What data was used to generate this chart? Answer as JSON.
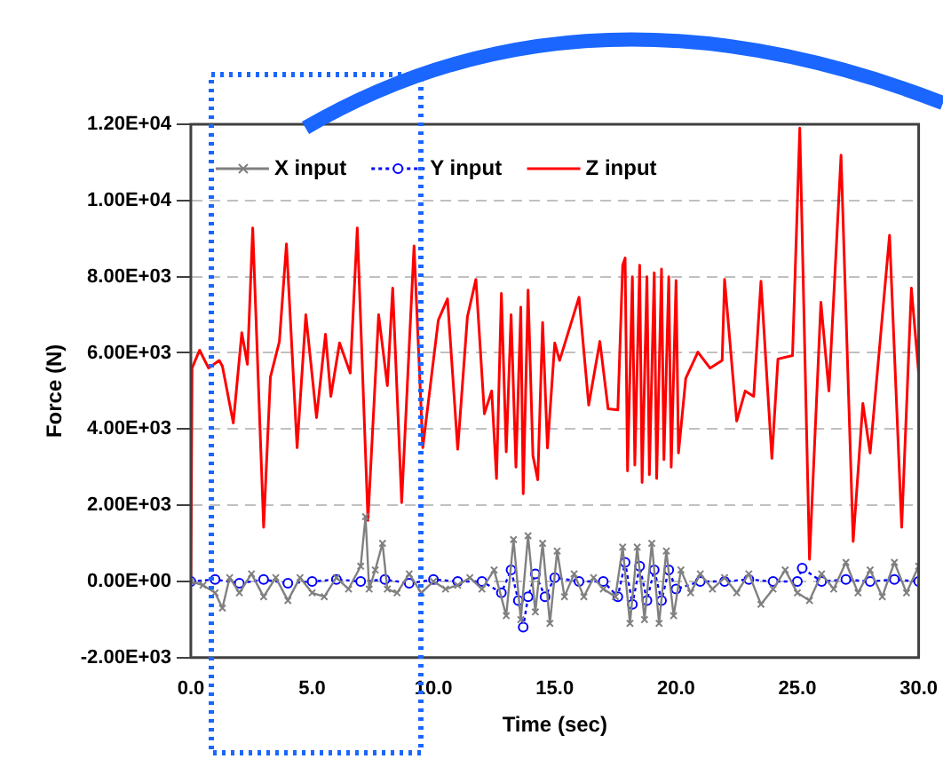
{
  "chart_data": {
    "type": "line",
    "xlabel": "Time (sec)",
    "ylabel": "Force (N)",
    "xlim": [
      0,
      30
    ],
    "xticks": [
      {
        "value": 0,
        "label": "0.0"
      },
      {
        "value": 5,
        "label": "5.0"
      },
      {
        "value": 10,
        "label": "10.0"
      },
      {
        "value": 15,
        "label": "15.0"
      },
      {
        "value": 20,
        "label": "20.0"
      },
      {
        "value": 25,
        "label": "25.0"
      },
      {
        "value": 30,
        "label": "30.0"
      }
    ],
    "ylim": [
      -2000,
      12000
    ],
    "yticks": [
      {
        "value": -2000,
        "label": "-2.00E+03"
      },
      {
        "value": 0,
        "label": "0.00E+00"
      },
      {
        "value": 2000,
        "label": "2.00E+03"
      },
      {
        "value": 4000,
        "label": "4.00E+03"
      },
      {
        "value": 6000,
        "label": "6.00E+03"
      },
      {
        "value": 8000,
        "label": "8.00E+03"
      },
      {
        "value": 10000,
        "label": "1.00E+04"
      },
      {
        "value": 12000,
        "label": "1.20E+04"
      }
    ],
    "grid": "y",
    "legend": "top left",
    "series": [
      {
        "name": "X input",
        "color": "#808080",
        "marker": "cross",
        "line_style": "solid",
        "x": [
          0,
          0.5,
          1,
          1.3,
          1.6,
          2,
          2.5,
          3,
          3.5,
          4,
          4.5,
          5,
          5.5,
          6,
          6.5,
          7,
          7.2,
          7.35,
          7.6,
          7.9,
          8.1,
          8.5,
          9,
          9.5,
          10,
          10.5,
          11,
          11.5,
          12,
          12.5,
          13,
          13.3,
          13.6,
          13.9,
          14.2,
          14.5,
          14.8,
          15.1,
          15.4,
          15.8,
          16.2,
          16.6,
          17,
          17.5,
          17.8,
          18.1,
          18.4,
          18.7,
          19,
          19.3,
          19.6,
          19.9,
          20.2,
          20.6,
          21,
          21.5,
          22,
          22.5,
          23,
          23.5,
          24,
          24.5,
          25,
          25.5,
          26,
          26.5,
          27,
          27.5,
          28,
          28.5,
          29,
          29.5,
          30
        ],
        "values": [
          0,
          -100,
          -300,
          -700,
          100,
          -300,
          200,
          -400,
          100,
          -500,
          100,
          -300,
          -400,
          100,
          -200,
          400,
          1700,
          -200,
          300,
          1000,
          -200,
          -300,
          200,
          -300,
          0,
          -200,
          -100,
          100,
          -200,
          300,
          -900,
          1100,
          -1000,
          1200,
          -800,
          1000,
          -1100,
          800,
          -400,
          200,
          -400,
          100,
          -200,
          -400,
          900,
          -1100,
          900,
          -1000,
          1000,
          -1100,
          800,
          -900,
          300,
          -300,
          200,
          -200,
          100,
          -300,
          200,
          -600,
          -200,
          300,
          -300,
          -500,
          200,
          -200,
          500,
          -300,
          300,
          -400,
          500,
          -300,
          400
        ]
      },
      {
        "name": "Y input",
        "color": "#0000ff",
        "marker": "circle",
        "line_style": "dotted",
        "x": [
          0,
          1,
          2,
          3,
          4,
          5,
          6,
          7,
          8,
          9,
          10,
          11,
          12,
          12.8,
          13.2,
          13.5,
          13.7,
          13.9,
          14.2,
          14.6,
          15,
          16,
          17,
          17.6,
          17.9,
          18.2,
          18.5,
          18.8,
          19.1,
          19.4,
          19.7,
          20,
          21,
          22,
          23,
          24,
          25,
          25.2,
          26,
          27,
          28,
          29,
          30
        ],
        "values": [
          0,
          50,
          -50,
          50,
          -50,
          0,
          50,
          0,
          50,
          -50,
          50,
          0,
          0,
          -300,
          300,
          -500,
          -1200,
          -400,
          200,
          -400,
          100,
          0,
          0,
          -400,
          500,
          -600,
          400,
          -500,
          300,
          -500,
          300,
          -200,
          0,
          0,
          50,
          0,
          0,
          350,
          0,
          50,
          0,
          50,
          0
        ]
      },
      {
        "name": "Z input",
        "color": "#ff0000",
        "marker": "none",
        "line_style": "solid",
        "x": [
          0,
          0.05,
          0.36,
          0.73,
          1.17,
          1.3,
          1.75,
          2.1,
          2.33,
          2.55,
          3,
          3.28,
          3.65,
          3.94,
          4.38,
          4.74,
          5.18,
          5.55,
          5.77,
          6.13,
          6.57,
          6.86,
          7.3,
          7.74,
          8.1,
          8.32,
          8.69,
          9.2,
          9.56,
          10.2,
          10.58,
          11,
          11.4,
          11.75,
          12.1,
          12.4,
          12.6,
          12.8,
          13,
          13.2,
          13.4,
          13.6,
          13.7,
          13.9,
          14.1,
          14.3,
          14.5,
          14.7,
          15,
          15.2,
          16,
          16.4,
          16.86,
          17.2,
          17.6,
          17.8,
          17.9,
          18,
          18.2,
          18.3,
          18.5,
          18.6,
          18.8,
          18.9,
          19.1,
          19.2,
          19.4,
          19.5,
          19.7,
          19.8,
          20,
          20.1,
          20.4,
          20.9,
          21.4,
          21.9,
          22,
          22.5,
          22.85,
          23.2,
          23.5,
          23.95,
          24.2,
          24.8,
          25.1,
          25.5,
          25.97,
          26.3,
          26.8,
          27.3,
          27.7,
          28,
          28.8,
          29.3,
          29.7,
          30
        ],
        "values": [
          0,
          5600,
          6070,
          5600,
          5800,
          5650,
          4160,
          6530,
          5700,
          9280,
          1420,
          5370,
          6300,
          8860,
          3510,
          7000,
          4300,
          6490,
          4860,
          6260,
          5470,
          9280,
          1600,
          7000,
          5140,
          7700,
          2070,
          8810,
          3510,
          6860,
          7420,
          3470,
          6950,
          7930,
          4400,
          5000,
          2700,
          7560,
          3400,
          7000,
          3000,
          7200,
          2300,
          7650,
          3300,
          2670,
          6800,
          3500,
          6260,
          5800,
          7460,
          4630,
          6300,
          4530,
          4500,
          8300,
          8490,
          2900,
          8000,
          3050,
          8300,
          2600,
          8000,
          2800,
          8100,
          2700,
          8200,
          3200,
          8000,
          3000,
          7900,
          3370,
          5330,
          6020,
          5600,
          5800,
          7930,
          4210,
          5000,
          4860,
          7880,
          3230,
          5840,
          5930,
          11900,
          580,
          7330,
          5000,
          11190,
          1050,
          4670,
          3370,
          9090,
          1420,
          7700,
          5470
        ]
      }
    ]
  }
}
